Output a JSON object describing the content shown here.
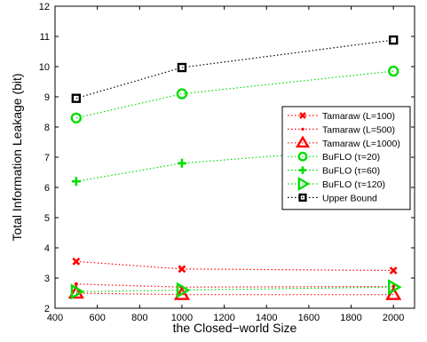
{
  "chart_data": {
    "type": "line",
    "title": "",
    "xlabel": "the Closed−world Size",
    "ylabel": "Total Information Leakage (bit)",
    "xlim": [
      400,
      2100
    ],
    "ylim": [
      2,
      12
    ],
    "x_ticks": [
      400,
      600,
      800,
      1000,
      1200,
      1400,
      1600,
      1800,
      2000
    ],
    "y_ticks": [
      2,
      3,
      4,
      5,
      6,
      7,
      8,
      9,
      10,
      11,
      12
    ],
    "grid": false,
    "legend_position": "right",
    "x": [
      500,
      1000,
      2000
    ],
    "series": [
      {
        "name": "Tamaraw (L=100)",
        "values": [
          3.55,
          3.3,
          3.25
        ],
        "color": "#ff0000",
        "marker": "x"
      },
      {
        "name": "Tamaraw (L=500)",
        "values": [
          2.8,
          2.7,
          2.72
        ],
        "color": "#ff0000",
        "marker": "dot"
      },
      {
        "name": "Tamaraw (L=1000)",
        "values": [
          2.5,
          2.45,
          2.45
        ],
        "color": "#ff0000",
        "marker": "triangle-up"
      },
      {
        "name": "BuFLO (τ=20)",
        "values": [
          8.3,
          9.1,
          9.85
        ],
        "color": "#00dd00",
        "marker": "circle"
      },
      {
        "name": "BuFLO (τ=60)",
        "values": [
          6.2,
          6.8,
          7.35
        ],
        "color": "#00dd00",
        "marker": "plus"
      },
      {
        "name": "BuFLO (τ=120)",
        "values": [
          2.55,
          2.6,
          2.7
        ],
        "color": "#00dd00",
        "marker": "triangle-right"
      },
      {
        "name": "Upper Bound",
        "values": [
          8.95,
          9.97,
          10.88
        ],
        "color": "#000000",
        "marker": "square"
      }
    ]
  }
}
